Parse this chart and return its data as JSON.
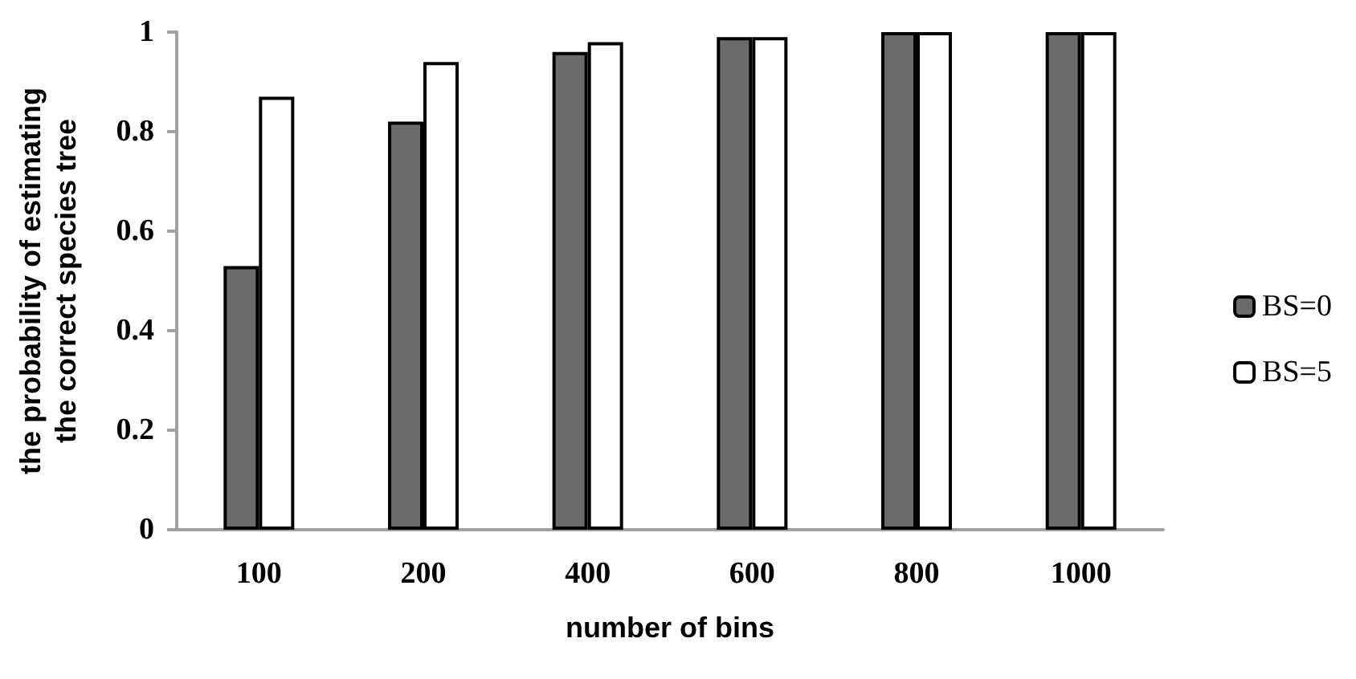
{
  "chart_data": {
    "type": "bar",
    "xlabel": "number of bins",
    "ylabel": "the probability of estimating\nthe correct species tree",
    "categories": [
      "100",
      "200",
      "400",
      "600",
      "800",
      "1000"
    ],
    "series": [
      {
        "name": "BS=0",
        "color": "#6b6b6b",
        "values": [
          0.53,
          0.82,
          0.96,
          0.99,
          1,
          1
        ]
      },
      {
        "name": "BS=5",
        "color": "#ffffff",
        "values": [
          0.87,
          0.94,
          0.98,
          0.99,
          1,
          1
        ]
      }
    ],
    "ylim": [
      0,
      1
    ],
    "yticks": [
      0,
      0.2,
      0.4,
      0.6,
      0.8,
      1
    ],
    "grid": false,
    "legend": "right"
  }
}
